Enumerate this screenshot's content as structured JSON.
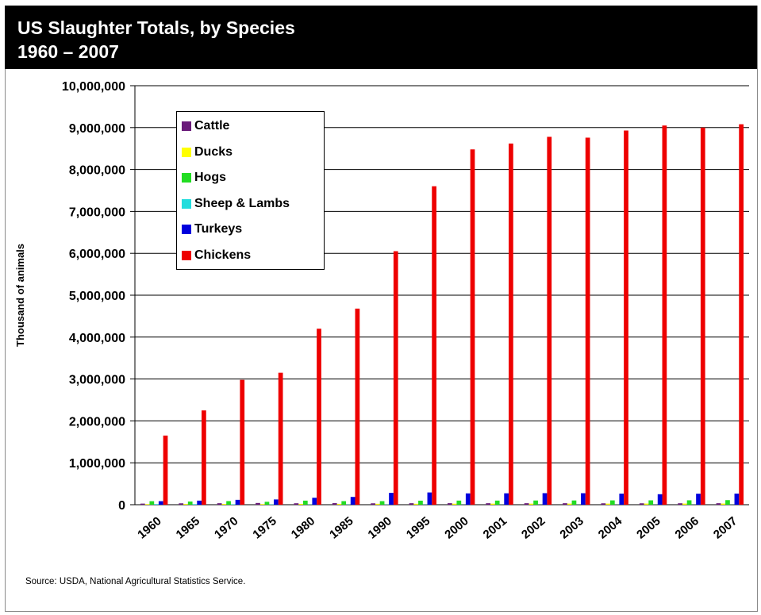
{
  "header": {
    "title_line1": "US Slaughter Totals, by Species",
    "title_line2": "1960 – 2007"
  },
  "source": "Source:  USDA, National Agricultural Statistics Service.",
  "chart_data": {
    "type": "bar",
    "title": "US Slaughter Totals, by Species 1960 – 2007",
    "xlabel": "",
    "ylabel": "Thousand of animals",
    "ylim": [
      0,
      10000000
    ],
    "yticks": [
      0,
      1000000,
      2000000,
      3000000,
      4000000,
      5000000,
      6000000,
      7000000,
      8000000,
      9000000,
      10000000
    ],
    "ytick_labels": [
      "0",
      "1,000,000",
      "2,000,000",
      "3,000,000",
      "4,000,000",
      "5,000,000",
      "6,000,000",
      "7,000,000",
      "8,000,000",
      "9,000,000",
      "10,000,000"
    ],
    "grid": true,
    "legend_position": "top-left",
    "categories": [
      "1960",
      "1965",
      "1970",
      "1975",
      "1980",
      "1985",
      "1990",
      "1995",
      "2000",
      "2001",
      "2002",
      "2003",
      "2004",
      "2005",
      "2006",
      "2007"
    ],
    "series": [
      {
        "name": "Cattle",
        "color": "#6a1b7a",
        "values": [
          26000,
          33000,
          35000,
          41000,
          34000,
          37000,
          33000,
          35000,
          36000,
          35000,
          35000,
          35000,
          33000,
          33000,
          34000,
          35000
        ]
      },
      {
        "name": "Ducks",
        "color": "#ffff00",
        "values": [
          15000,
          18000,
          18000,
          15000,
          20000,
          20000,
          22000,
          22000,
          24000,
          25000,
          25000,
          26000,
          26000,
          27000,
          27000,
          27000
        ]
      },
      {
        "name": "Hogs",
        "color": "#22dd22",
        "values": [
          84000,
          76000,
          86000,
          69000,
          97000,
          85000,
          85000,
          96000,
          98000,
          98000,
          100000,
          101000,
          103000,
          104000,
          105000,
          109000
        ]
      },
      {
        "name": "Sheep & Lambs",
        "color": "#22dddd",
        "values": [
          15000,
          13000,
          10000,
          8000,
          6000,
          6000,
          6000,
          5000,
          3000,
          3000,
          3000,
          3000,
          3000,
          3000,
          3000,
          3000
        ]
      },
      {
        "name": "Turkeys",
        "color": "#0000dd",
        "values": [
          84000,
          97000,
          116000,
          125000,
          165000,
          185000,
          282000,
          292000,
          270000,
          272000,
          275000,
          274000,
          264000,
          250000,
          262000,
          265000
        ]
      },
      {
        "name": "Chickens",
        "color": "#ee0000",
        "values": [
          1650000,
          2250000,
          2980000,
          3150000,
          4200000,
          4680000,
          6050000,
          7600000,
          8480000,
          8620000,
          8780000,
          8760000,
          8930000,
          9050000,
          9000000,
          9080000
        ]
      }
    ]
  }
}
